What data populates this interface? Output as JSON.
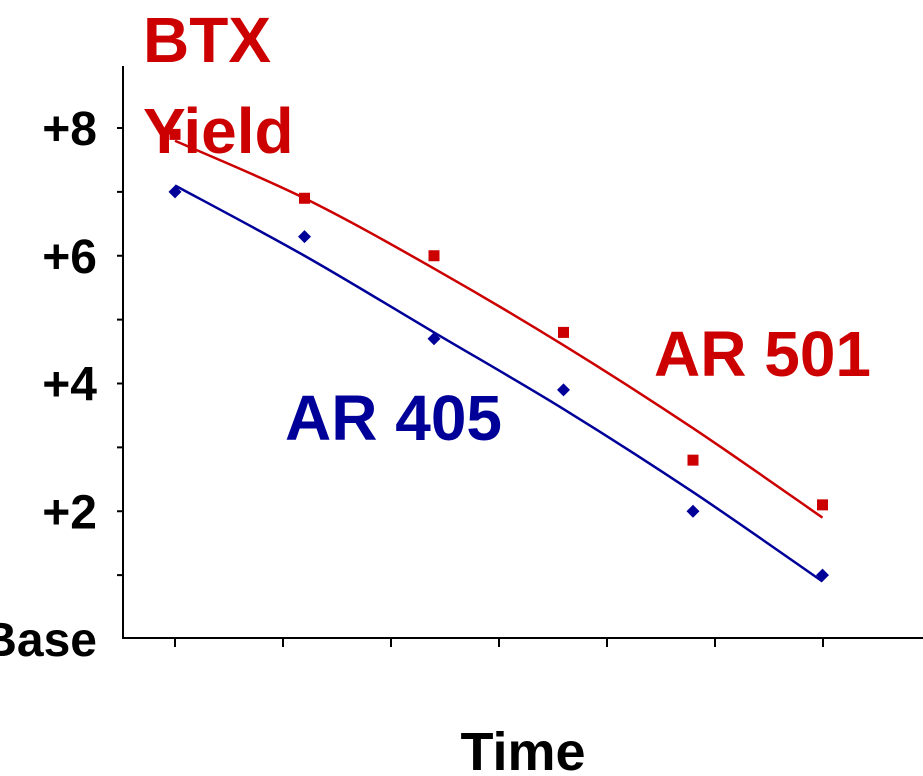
{
  "chart_data": {
    "type": "scatter",
    "title": "BTX Yield",
    "title_lines": [
      "BTX",
      "Yield"
    ],
    "xlabel": "Time",
    "ylabel": "",
    "ylim": [
      -2,
      9
    ],
    "yticks": [
      {
        "value": 8,
        "label": "+8"
      },
      {
        "value": 6,
        "label": "+6"
      },
      {
        "value": 4,
        "label": "+4"
      },
      {
        "value": 2,
        "label": "+2"
      },
      {
        "value": 0,
        "label": "Base"
      }
    ],
    "x_ticks_count": 7,
    "series": [
      {
        "name": "AR 501",
        "color": "#cc0000",
        "marker": "square",
        "x": [
          1,
          2,
          3,
          4,
          5,
          6
        ],
        "y": [
          7.9,
          6.9,
          6.0,
          4.8,
          2.8,
          2.1
        ],
        "trend": [
          [
            1,
            7.8
          ],
          [
            2,
            6.9
          ],
          [
            3,
            5.8
          ],
          [
            4,
            4.6
          ],
          [
            5,
            3.3
          ],
          [
            6,
            1.9
          ]
        ]
      },
      {
        "name": "AR 405",
        "color": "#000099",
        "marker": "diamond",
        "x": [
          1,
          2,
          3,
          4,
          5,
          6
        ],
        "y": [
          7.0,
          6.3,
          4.7,
          3.9,
          2.0,
          1.0
        ],
        "trend": [
          [
            1,
            7.1
          ],
          [
            2,
            6.0
          ],
          [
            3,
            4.8
          ],
          [
            4,
            3.6
          ],
          [
            5,
            2.3
          ],
          [
            6,
            0.9
          ]
        ]
      }
    ],
    "labels": {
      "ar501": "AR 501",
      "ar405": "AR 405"
    },
    "grid": false,
    "legend": "none"
  }
}
